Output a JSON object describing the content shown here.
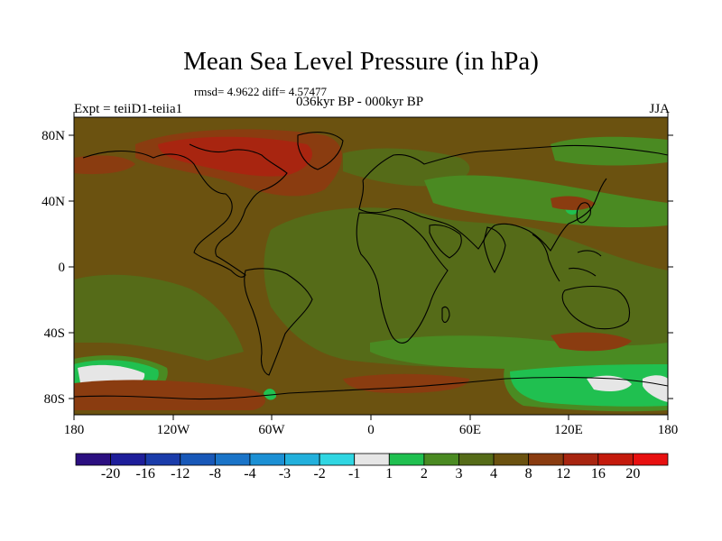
{
  "title": "Mean Sea Level Pressure (in hPa)",
  "stats": "rmsd= 4.9622 diff= 4.57477",
  "experiment": "Expt = teiiD1-teiia1",
  "period": "036kyr BP - 000kyr BP",
  "season": "JJA",
  "map": {
    "lon_ticks": [
      "180",
      "120W",
      "60W",
      "0",
      "60E",
      "120E",
      "180"
    ],
    "lat_ticks": [
      "80N",
      "40N",
      "0",
      "40S",
      "80S"
    ]
  },
  "colorbar": {
    "labels": [
      "-20",
      "-16",
      "-12",
      "-8",
      "-4",
      "-3",
      "-2",
      "-1",
      "1",
      "2",
      "3",
      "4",
      "8",
      "12",
      "16",
      "20"
    ],
    "colors": [
      "#2b0f80",
      "#1e1e9a",
      "#1a3caa",
      "#1858b8",
      "#1a74c8",
      "#1c90d4",
      "#22b0dc",
      "#30d6e2",
      "#e6e6e6",
      "#20c050",
      "#4a8a22",
      "#556b18",
      "#6b5210",
      "#8a3c10",
      "#a82510",
      "#c41a0c",
      "#e81010"
    ]
  },
  "field_colors": {
    "background": "#6b5210",
    "green_dark": "#556b18",
    "green_mid": "#4a8a22",
    "green_bright": "#20c050",
    "brown_red": "#8a3c10",
    "red": "#a82510",
    "white": "#e6e6e6"
  }
}
